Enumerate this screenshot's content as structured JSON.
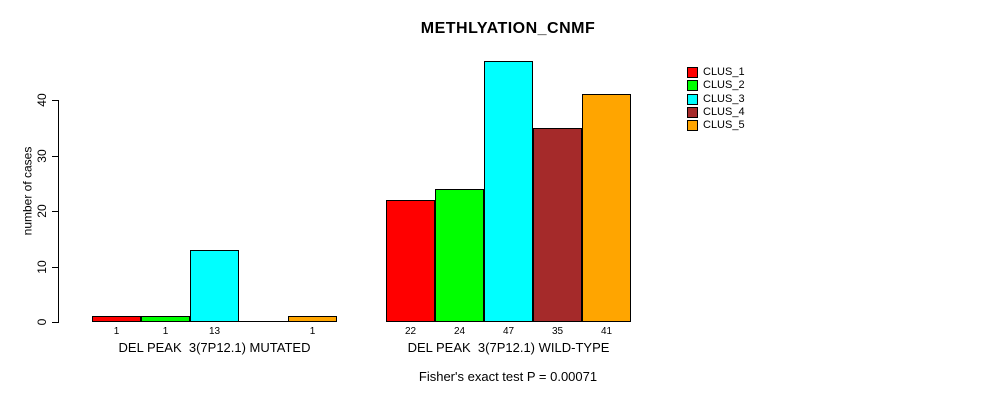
{
  "chart_data": {
    "type": "bar",
    "title": "METHLYATION_CNMF",
    "footer": "Fisher's exact test P = 0.00071",
    "yaxis": {
      "label": "number of cases",
      "ticks": [
        0,
        10,
        20,
        30,
        40
      ],
      "range": [
        0,
        47
      ]
    },
    "grid": false,
    "background": "#FFFFFF",
    "bar_border_color": "#000000",
    "series_names": [
      "CLUS_1",
      "CLUS_2",
      "CLUS_3",
      "CLUS_4",
      "CLUS_5"
    ],
    "series_colors": [
      "#FF0000",
      "#00FF00",
      "#00FFFF",
      "#A52A2A",
      "#FFA500"
    ],
    "groups": [
      {
        "label": "DEL PEAK  3(7P12.1) MUTATED",
        "values": [
          1,
          1,
          13,
          0,
          1
        ],
        "bar_labels": [
          "1",
          "1",
          "13",
          "",
          "1"
        ]
      },
      {
        "label": "DEL PEAK  3(7P12.1) WILD-TYPE",
        "values": [
          22,
          24,
          47,
          35,
          41
        ],
        "bar_labels": [
          "22",
          "24",
          "47",
          "35",
          "41"
        ]
      }
    ],
    "legend": {
      "position": "right",
      "entries": [
        {
          "label": "CLUS_1",
          "color": "#FF0000"
        },
        {
          "label": "CLUS_2",
          "color": "#00FF00"
        },
        {
          "label": "CLUS_3",
          "color": "#00FFFF"
        },
        {
          "label": "CLUS_4",
          "color": "#A52A2A"
        },
        {
          "label": "CLUS_5",
          "color": "#FFA500"
        }
      ]
    }
  }
}
